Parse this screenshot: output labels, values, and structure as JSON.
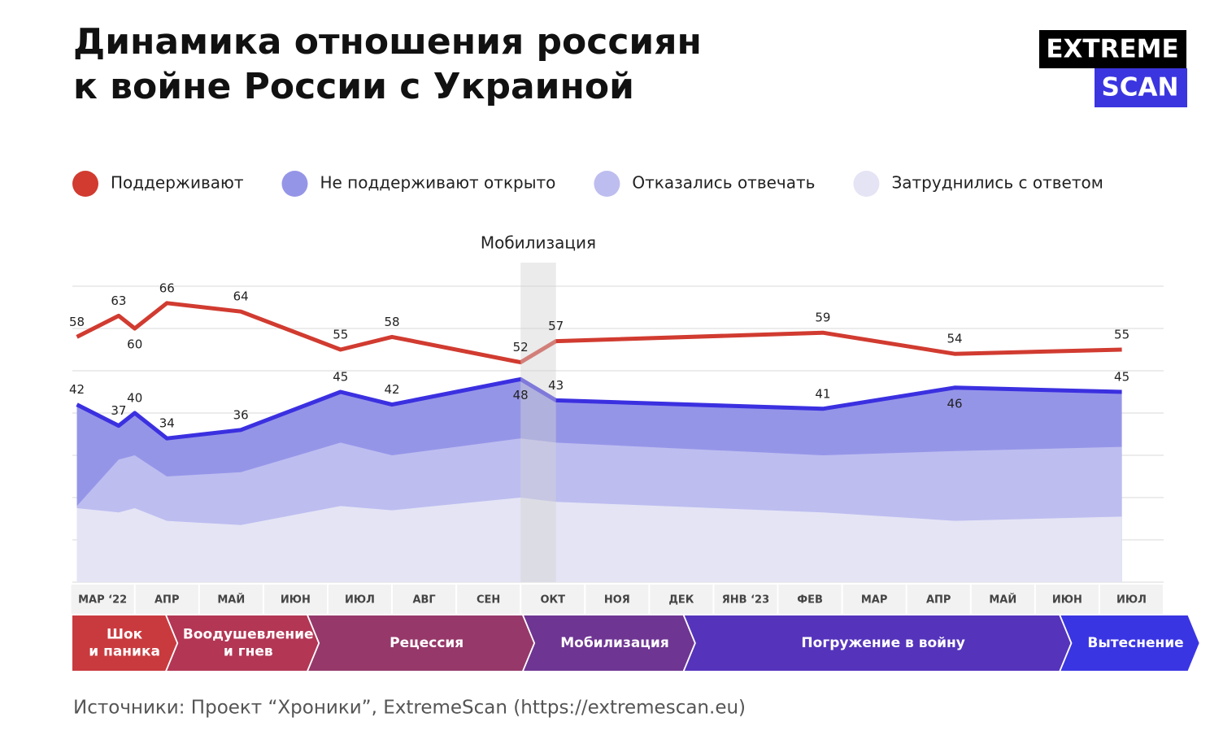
{
  "header": {
    "title": [
      "Динамика отношения россиян",
      "к войне России с Украиной"
    ],
    "logo": [
      "EXTREME",
      "SCAN"
    ]
  },
  "chart_data": {
    "type": "area",
    "x": [
      -0.4,
      0.25,
      0.5,
      1,
      2.15,
      3.7,
      4.5,
      6.5,
      7.05,
      11.2,
      13.25,
      15.85
    ],
    "xlim": [
      -0.47,
      16.5
    ],
    "xticks": [
      {
        "value": 0,
        "label": "МАР ‘22"
      },
      {
        "value": 1,
        "label": "АПР"
      },
      {
        "value": 2,
        "label": "МАЙ"
      },
      {
        "value": 3,
        "label": "ИЮН"
      },
      {
        "value": 4,
        "label": "ИЮЛ"
      },
      {
        "value": 5,
        "label": "АВГ"
      },
      {
        "value": 6,
        "label": "СЕН"
      },
      {
        "value": 7,
        "label": "ОКТ"
      },
      {
        "value": 8,
        "label": "НОЯ"
      },
      {
        "value": 9,
        "label": "ДЕК"
      },
      {
        "value": 10,
        "label": "ЯНВ ‘23"
      },
      {
        "value": 11,
        "label": "ФЕВ"
      },
      {
        "value": 12,
        "label": "МАР"
      },
      {
        "value": 13,
        "label": "АПР"
      },
      {
        "value": 14,
        "label": "МАЙ"
      },
      {
        "value": 15,
        "label": "ИЮН"
      },
      {
        "value": 16,
        "label": "ИЮЛ"
      }
    ],
    "ylim": [
      0,
      70
    ],
    "yticks": [
      0,
      10,
      20,
      30,
      40,
      50,
      60,
      70
    ],
    "grid": true,
    "series": [
      {
        "name": "Поддерживают",
        "color": "#d13b30",
        "style": "line",
        "values": [
          58,
          63,
          60,
          66,
          64,
          55,
          58,
          52,
          57,
          59,
          54,
          55
        ]
      },
      {
        "name": "Не поддерживают открыто",
        "color": "#3b30e0",
        "fill": "#9595e8",
        "style": "line-area",
        "values": [
          42,
          37,
          40,
          34,
          36,
          45,
          42,
          48,
          43,
          41,
          46,
          45
        ]
      },
      {
        "name": "Отказались отвечать",
        "fill": "#bdbdf0",
        "style": "area",
        "values": [
          18,
          29,
          30,
          25,
          26,
          33,
          30,
          34,
          33,
          30,
          31,
          32
        ]
      },
      {
        "name": "Затруднились с ответом",
        "fill": "#e4e4f5",
        "style": "area",
        "values": [
          17.5,
          16.5,
          17.5,
          14.5,
          13.5,
          18,
          17,
          20,
          19,
          16.5,
          14.5,
          15.5
        ]
      }
    ],
    "highlight": {
      "label": "Мобилизация",
      "xrange": [
        6.5,
        7.05
      ]
    },
    "phases": [
      {
        "label": [
          "Шок",
          "и паника"
        ],
        "xrange": [
          -0.47,
          1
        ],
        "color": "#c93a3e"
      },
      {
        "label": [
          "Воодушевление",
          "и гнев"
        ],
        "xrange": [
          1,
          3.2
        ],
        "color": "#b33655"
      },
      {
        "label": [
          "Рецессия"
        ],
        "xrange": [
          3.2,
          6.55
        ],
        "color": "#96386a"
      },
      {
        "label": [
          "Мобилизация"
        ],
        "xrange": [
          6.55,
          9.05
        ],
        "color": "#6e3592"
      },
      {
        "label": [
          "Погружение в войну"
        ],
        "xrange": [
          9.05,
          14.9
        ],
        "color": "#5534bb"
      },
      {
        "label": [
          "Вытеснение"
        ],
        "xrange": [
          14.9,
          16.9
        ],
        "color": "#3a35e2"
      }
    ]
  },
  "source": "Источники: Проект “Хроники”, ExtremeScan (https://extremescan.eu)"
}
